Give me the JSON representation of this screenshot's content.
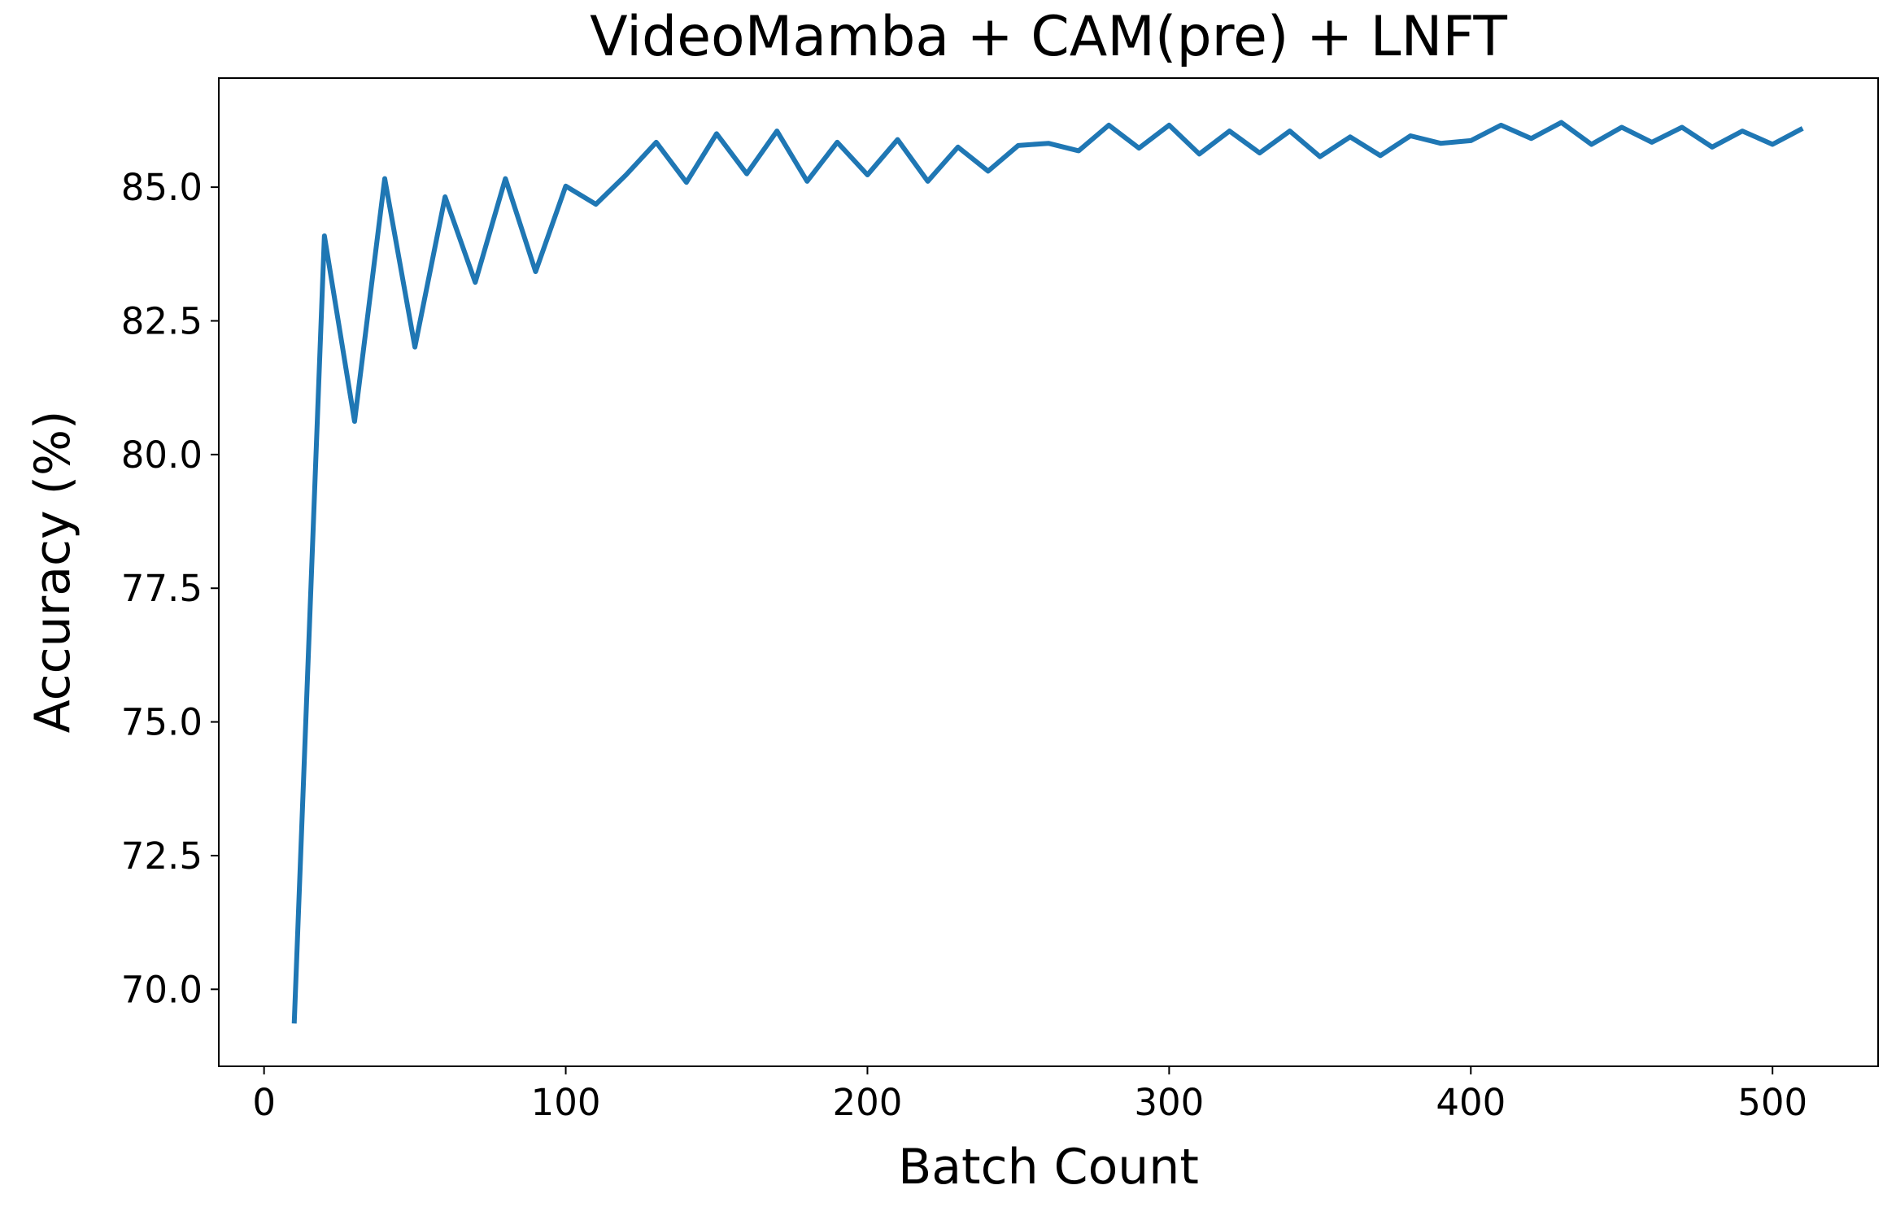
{
  "chart_data": {
    "type": "line",
    "title": "VideoMamba + CAM(pre) + LNFT",
    "xlabel": "Batch Count",
    "ylabel": "Accuracy (%)",
    "x": [
      10,
      20,
      30,
      40,
      50,
      60,
      70,
      80,
      90,
      100,
      110,
      120,
      130,
      140,
      150,
      160,
      170,
      180,
      190,
      200,
      210,
      220,
      230,
      240,
      250,
      260,
      270,
      280,
      290,
      300,
      310,
      320,
      330,
      340,
      350,
      360,
      370,
      380,
      390,
      400,
      410,
      420,
      430,
      440,
      450,
      460,
      470,
      480,
      490,
      500,
      510
    ],
    "series": [
      {
        "name": "Accuracy",
        "color": "#1f77b4",
        "values": [
          69.36,
          84.09,
          80.62,
          85.16,
          82.01,
          84.82,
          83.22,
          85.16,
          83.42,
          85.02,
          84.68,
          85.23,
          85.84,
          85.09,
          86.0,
          85.25,
          86.05,
          85.11,
          85.84,
          85.23,
          85.89,
          85.11,
          85.75,
          85.3,
          85.78,
          85.82,
          85.68,
          86.16,
          85.73,
          86.16,
          85.62,
          86.05,
          85.64,
          86.05,
          85.57,
          85.94,
          85.59,
          85.96,
          85.82,
          85.87,
          86.16,
          85.91,
          86.21,
          85.8,
          86.12,
          85.84,
          86.12,
          85.75,
          86.05,
          85.8,
          86.1
        ]
      }
    ],
    "xlim": [
      -15,
      535
    ],
    "ylim": [
      68.56,
      87.04
    ],
    "xticks": [
      0,
      100,
      200,
      300,
      400,
      500
    ],
    "yticks": [
      {
        "value": 70,
        "label": "70.0"
      },
      72.5,
      {
        "value": 75,
        "label": "75.0"
      },
      77.5,
      {
        "value": 80,
        "label": "80.0"
      },
      82.5,
      {
        "value": 85,
        "label": "85.0"
      }
    ],
    "grid": false
  }
}
